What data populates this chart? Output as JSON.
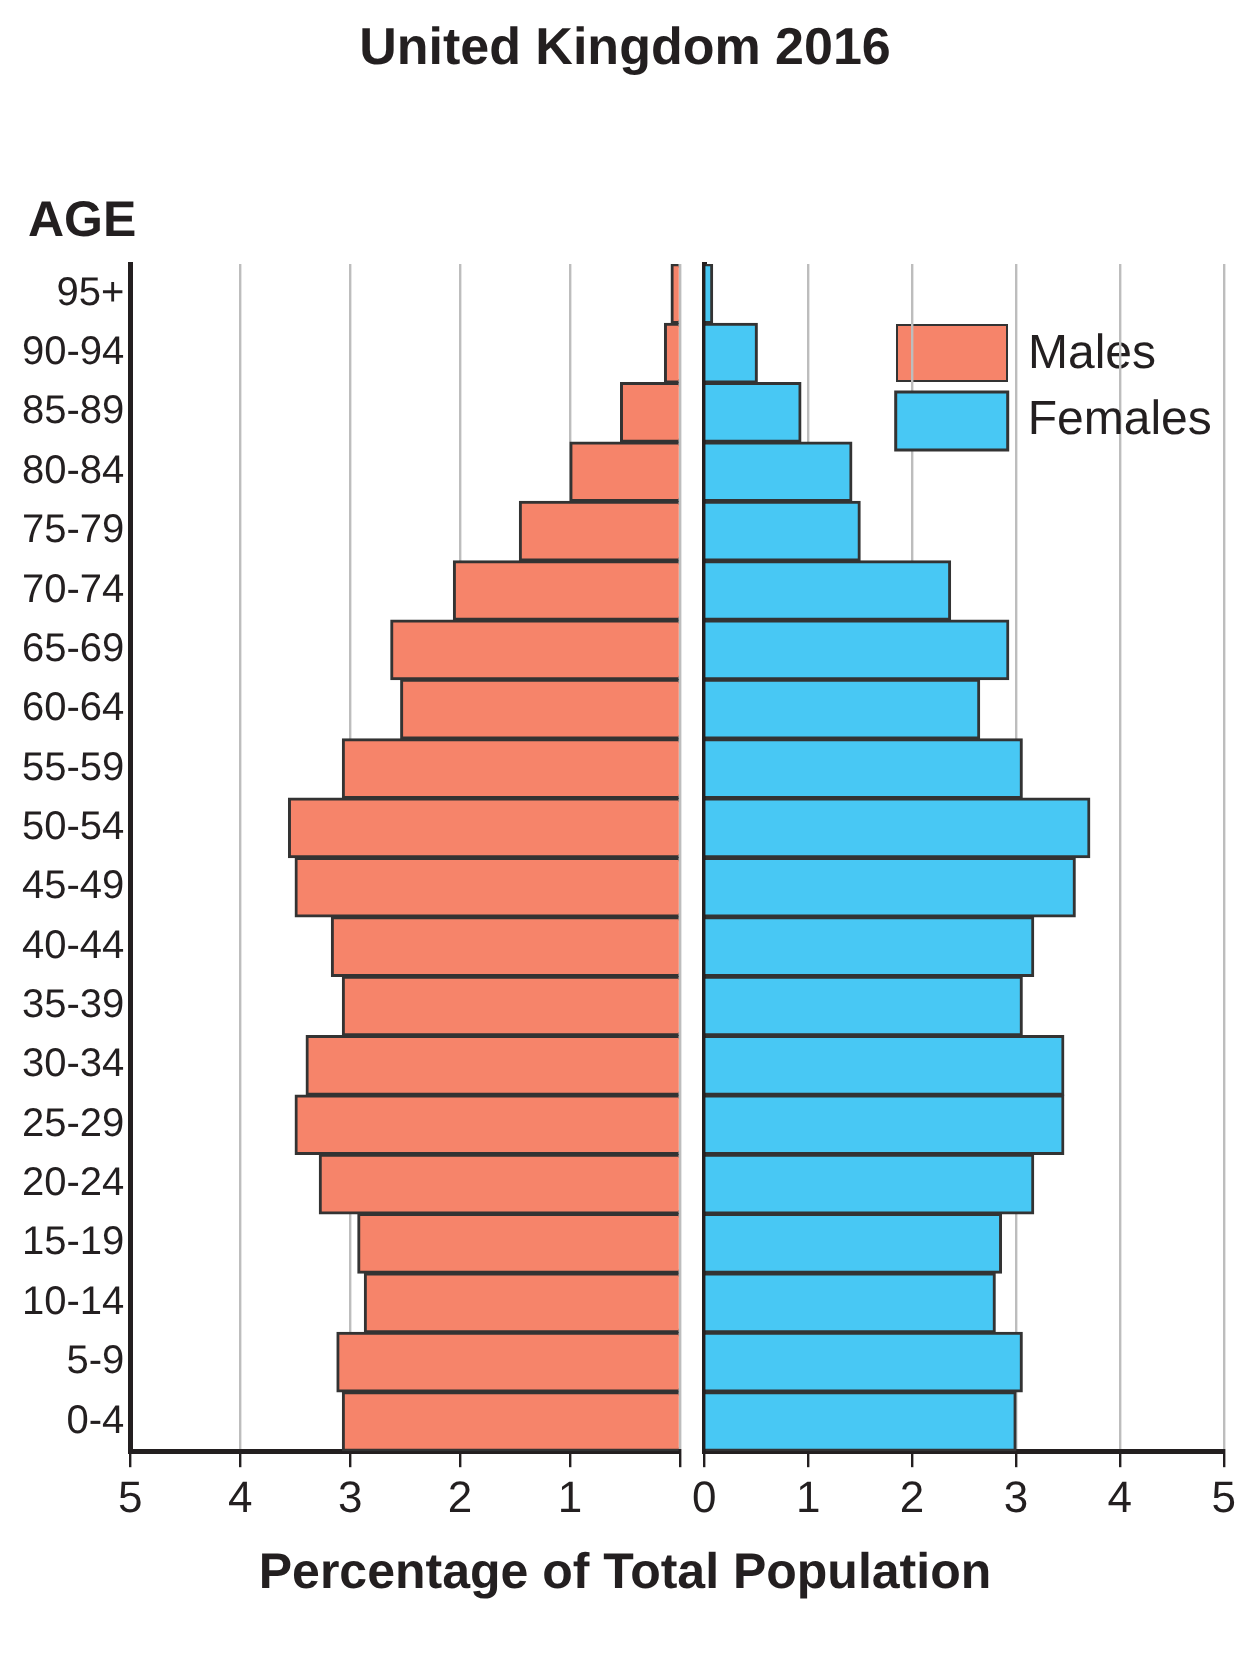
{
  "chart_data": [
    {
      "type": "bar",
      "orientation": "horizontal",
      "title": "United Kingdom 2016",
      "xlabel": "Percentage of Total Population",
      "ylabel": "AGE",
      "categories": [
        "95+",
        "90-94",
        "85-89",
        "80-84",
        "75-79",
        "70-74",
        "65-69",
        "60-64",
        "55-59",
        "50-54",
        "45-49",
        "40-44",
        "35-39",
        "30-34",
        "25-29",
        "20-24",
        "15-19",
        "10-14",
        "5-9",
        "0-4"
      ],
      "series": [
        {
          "name": "Males",
          "color": "#f6846a",
          "values": [
            0.08,
            0.14,
            0.54,
            1.0,
            1.46,
            2.06,
            2.63,
            2.54,
            3.07,
            3.56,
            3.5,
            3.17,
            3.07,
            3.4,
            3.5,
            3.28,
            2.93,
            2.87,
            3.12,
            3.07
          ]
        }
      ],
      "xlim": [
        5,
        0
      ],
      "xticks": [
        5,
        4,
        3,
        2,
        1,
        {
          "value": 0,
          "label": null
        }
      ],
      "grid": "x",
      "legend": "right"
    },
    {
      "type": "bar",
      "orientation": "horizontal",
      "categories": [
        null,
        null,
        null,
        null,
        null,
        null,
        null,
        null,
        null,
        null,
        null,
        null,
        null,
        null,
        null,
        null,
        null,
        null,
        null,
        null
      ],
      "series": [
        {
          "name": "Females",
          "color": "#48c8f4",
          "values": [
            0.08,
            0.51,
            0.93,
            1.42,
            1.5,
            2.37,
            2.93,
            2.65,
            3.06,
            3.71,
            3.57,
            3.17,
            3.06,
            3.46,
            3.46,
            3.17,
            2.86,
            2.8,
            3.06,
            3.0
          ]
        }
      ],
      "xlim": [
        0,
        5
      ],
      "xticks": [
        0,
        1,
        2,
        3,
        4,
        5
      ],
      "grid": "x",
      "legend": "top right",
      "tick_labels": "x"
    }
  ]
}
